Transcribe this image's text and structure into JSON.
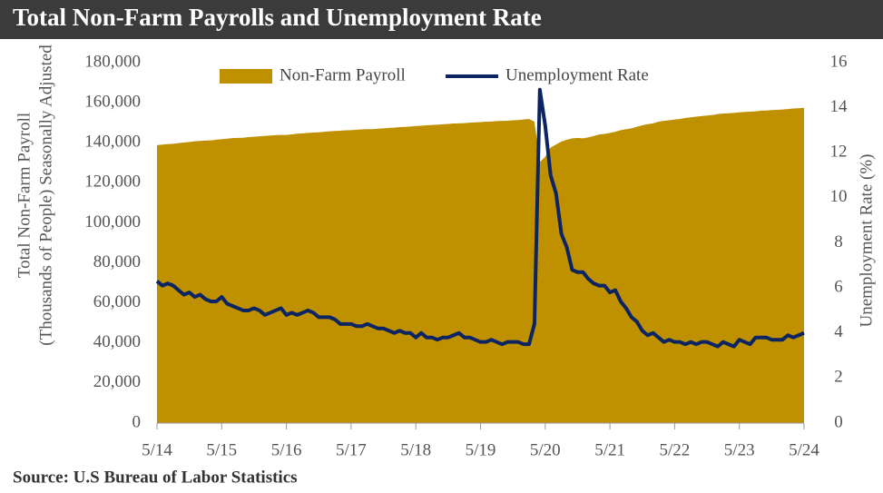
{
  "chart_data": {
    "type": "area-line",
    "title": "Total Non-Farm Payrolls and Unemployment Rate",
    "ylabel": [
      "Total Non-Farm Payroll",
      "(Thousands of People) Seasonally Adjusted"
    ],
    "y2label": "Unemployment Rate (%)",
    "source": "Source:  U.S Bureau of Labor Statistics",
    "categories": [
      "5/14",
      null,
      null,
      null,
      null,
      null,
      null,
      null,
      null,
      null,
      null,
      null,
      "5/15",
      null,
      null,
      null,
      null,
      null,
      null,
      null,
      null,
      null,
      null,
      null,
      "5/16",
      null,
      null,
      null,
      null,
      null,
      null,
      null,
      null,
      null,
      null,
      null,
      "5/17",
      null,
      null,
      null,
      null,
      null,
      null,
      null,
      null,
      null,
      null,
      null,
      "5/18",
      null,
      null,
      null,
      null,
      null,
      null,
      null,
      null,
      null,
      null,
      null,
      "5/19",
      null,
      null,
      null,
      null,
      null,
      null,
      null,
      null,
      null,
      null,
      null,
      "5/20",
      null,
      null,
      null,
      null,
      null,
      null,
      null,
      null,
      null,
      null,
      null,
      "5/21",
      null,
      null,
      null,
      null,
      null,
      null,
      null,
      null,
      null,
      null,
      null,
      "5/22",
      null,
      null,
      null,
      null,
      null,
      null,
      null,
      null,
      null,
      null,
      null,
      "5/23",
      null,
      null,
      null,
      null,
      null,
      null,
      null,
      null,
      null,
      null,
      null,
      "5/24"
    ],
    "series": [
      {
        "name": "Non-Farm Payroll",
        "color": "#bf9000",
        "axis": "y",
        "values": [
          138800,
          139100,
          139300,
          139500,
          139800,
          140100,
          140400,
          140700,
          140900,
          141100,
          141200,
          141500,
          141800,
          142000,
          142300,
          142400,
          142500,
          142800,
          143000,
          143200,
          143400,
          143600,
          143800,
          143900,
          143900,
          144200,
          144500,
          144700,
          144900,
          145100,
          145200,
          145500,
          145700,
          145900,
          146000,
          146200,
          146300,
          146500,
          146700,
          146800,
          146800,
          147000,
          147200,
          147400,
          147500,
          147800,
          147900,
          148100,
          148400,
          148500,
          148700,
          148900,
          149000,
          149200,
          149400,
          149600,
          149700,
          149800,
          150000,
          150200,
          150300,
          150500,
          150600,
          150800,
          150900,
          151000,
          151200,
          151300,
          151600,
          151900,
          150500,
          130400,
          133000,
          137600,
          139100,
          140600,
          141500,
          142200,
          142400,
          142200,
          142700,
          143400,
          144100,
          144400,
          144900,
          145500,
          146300,
          146800,
          147200,
          148000,
          148700,
          149300,
          149700,
          150500,
          150900,
          151200,
          151600,
          151900,
          152400,
          152700,
          153000,
          153300,
          153600,
          153800,
          154300,
          154600,
          154700,
          154900,
          155200,
          155400,
          155500,
          155700,
          156000,
          156100,
          156300,
          156400,
          156600,
          156800,
          157100,
          157200,
          157500
        ]
      },
      {
        "name": "Unemployment Rate",
        "color": "#0c2461",
        "axis": "y2",
        "values": [
          6.3,
          6.1,
          6.2,
          6.1,
          5.9,
          5.7,
          5.8,
          5.6,
          5.7,
          5.5,
          5.4,
          5.4,
          5.6,
          5.3,
          5.2,
          5.1,
          5.0,
          5.0,
          5.1,
          5.0,
          4.8,
          4.9,
          5.0,
          5.1,
          4.8,
          4.9,
          4.8,
          4.9,
          5.0,
          4.9,
          4.7,
          4.7,
          4.7,
          4.6,
          4.4,
          4.4,
          4.4,
          4.3,
          4.3,
          4.4,
          4.3,
          4.2,
          4.2,
          4.1,
          4.0,
          4.1,
          4.0,
          4.0,
          3.8,
          4.0,
          3.8,
          3.8,
          3.7,
          3.8,
          3.8,
          3.9,
          4.0,
          3.8,
          3.8,
          3.7,
          3.6,
          3.6,
          3.7,
          3.6,
          3.5,
          3.6,
          3.6,
          3.6,
          3.5,
          3.5,
          4.4,
          14.8,
          13.2,
          11.0,
          10.2,
          8.4,
          7.8,
          6.8,
          6.7,
          6.7,
          6.4,
          6.2,
          6.1,
          6.1,
          5.8,
          5.9,
          5.4,
          5.1,
          4.7,
          4.5,
          4.1,
          3.9,
          4.0,
          3.8,
          3.6,
          3.7,
          3.6,
          3.6,
          3.5,
          3.6,
          3.5,
          3.6,
          3.6,
          3.5,
          3.4,
          3.6,
          3.5,
          3.4,
          3.7,
          3.6,
          3.5,
          3.8,
          3.8,
          3.8,
          3.7,
          3.7,
          3.7,
          3.9,
          3.8,
          3.9,
          4.0
        ]
      }
    ],
    "ylim": [
      0,
      180000
    ],
    "yticks": [
      0,
      {
        "value": 20000,
        "label": "20,000"
      },
      {
        "value": 40000,
        "label": "40,000"
      },
      {
        "value": 60000,
        "label": "60,000"
      },
      {
        "value": 80000,
        "label": "80,000"
      },
      {
        "value": 100000,
        "label": "100,000"
      },
      {
        "value": 120000,
        "label": "120,000"
      },
      {
        "value": 140000,
        "label": "140,000"
      },
      {
        "value": 160000,
        "label": "160,000"
      },
      {
        "value": 180000,
        "label": "180,000"
      }
    ],
    "y2lim": [
      0,
      16
    ],
    "y2ticks": [
      0,
      2,
      4,
      6,
      8,
      10,
      12,
      14,
      16
    ],
    "grid": false,
    "legend": "top"
  }
}
